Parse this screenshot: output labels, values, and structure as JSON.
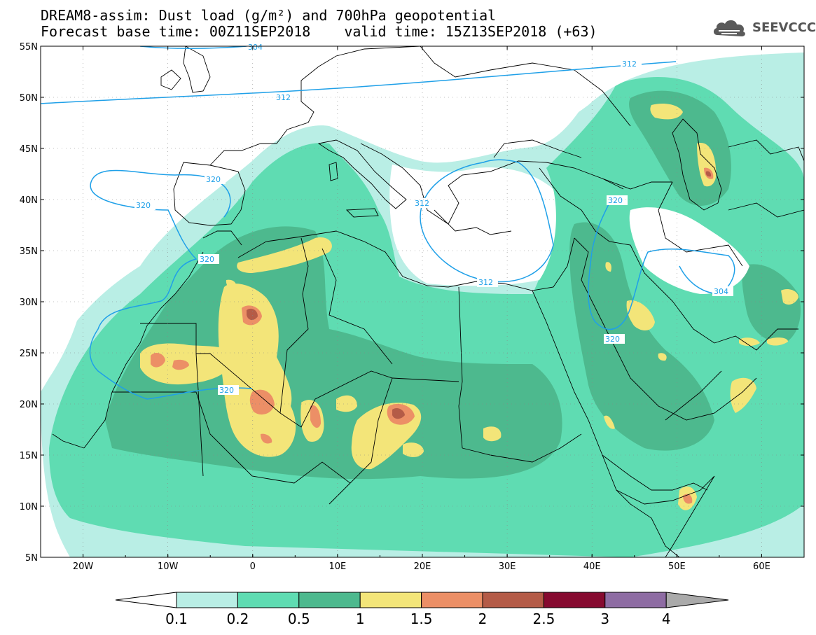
{
  "header": {
    "title_line1": "DREAM8-assim: Dust load (g/m²) and 700hPa geopotential",
    "forecast_base": "Forecast base time: 00Z11SEP2018",
    "valid_time": "valid time: 15Z13SEP2018 (+63)",
    "logo_text": "SEEVCCC"
  },
  "map": {
    "lat_labels": [
      "55N",
      "50N",
      "45N",
      "40N",
      "35N",
      "30N",
      "25N",
      "20N",
      "15N",
      "10N",
      "5N"
    ],
    "lat_values": [
      55,
      50,
      45,
      40,
      35,
      30,
      25,
      20,
      15,
      10,
      5
    ],
    "lon_labels": [
      "20W",
      "10W",
      "0",
      "10E",
      "20E",
      "30E",
      "40E",
      "50E",
      "60E"
    ],
    "lon_values": [
      -20,
      -10,
      0,
      10,
      20,
      30,
      40,
      50,
      60
    ],
    "extent": {
      "lon_min": -25,
      "lon_max": 65,
      "lat_min": 5,
      "lat_max": 55
    },
    "geopotential_labels": [
      "312",
      "312",
      "320",
      "320",
      "312",
      "312",
      "320",
      "320",
      "320",
      "320",
      "304",
      "304"
    ],
    "colors": {
      "contour": "#1fa0e8",
      "border": "#000000"
    }
  },
  "colorbar": {
    "labels": [
      "0.1",
      "0.2",
      "0.5",
      "1",
      "1.5",
      "2",
      "2.5",
      "3",
      "4"
    ],
    "bins": [
      {
        "color": "#b9eee5"
      },
      {
        "color": "#5fdcb2"
      },
      {
        "color": "#4db98e"
      },
      {
        "color": "#f3e579"
      },
      {
        "color": "#ec8f66"
      },
      {
        "color": "#b45b47"
      },
      {
        "color": "#860a30"
      },
      {
        "color": "#8e6ca3"
      }
    ],
    "under_color": "#ffffff",
    "over_color": "#aaaaaa"
  }
}
